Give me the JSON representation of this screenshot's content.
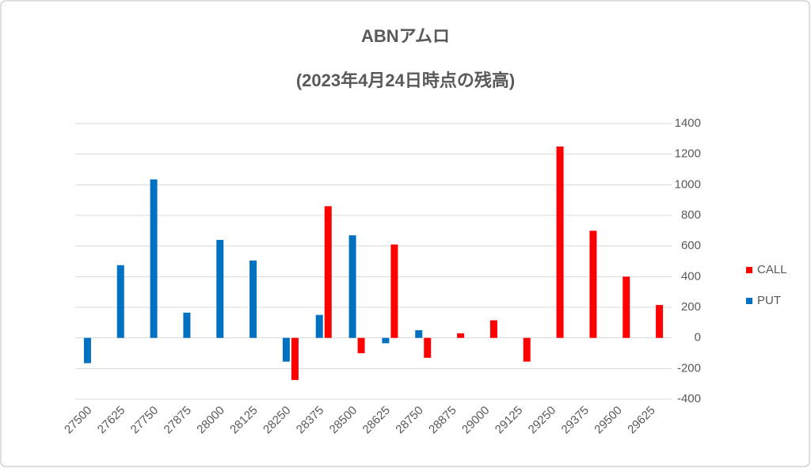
{
  "chart_data": {
    "type": "bar",
    "title": "ABNアムロ",
    "subtitle": "(2023年4月24日時点の残高)",
    "categories": [
      "27500",
      "27625",
      "27750",
      "27875",
      "28000",
      "28125",
      "28250",
      "28375",
      "28500",
      "28625",
      "28750",
      "28875",
      "29000",
      "29125",
      "29250",
      "29375",
      "29500",
      "29625"
    ],
    "series": [
      {
        "name": "CALL",
        "color": "#ff0000",
        "values": [
          null,
          null,
          null,
          null,
          null,
          null,
          -275,
          860,
          -100,
          610,
          -130,
          30,
          115,
          -155,
          1250,
          700,
          400,
          215
        ]
      },
      {
        "name": "PUT",
        "color": "#0070c0",
        "values": [
          -165,
          475,
          1035,
          165,
          640,
          505,
          -155,
          150,
          670,
          -35,
          50,
          null,
          null,
          null,
          null,
          null,
          null,
          null
        ]
      }
    ],
    "ylim": [
      -400,
      1400
    ],
    "yticks": [
      -400,
      -200,
      0,
      200,
      400,
      600,
      800,
      1000,
      1200,
      1400
    ],
    "grid": true,
    "legend": "right"
  }
}
